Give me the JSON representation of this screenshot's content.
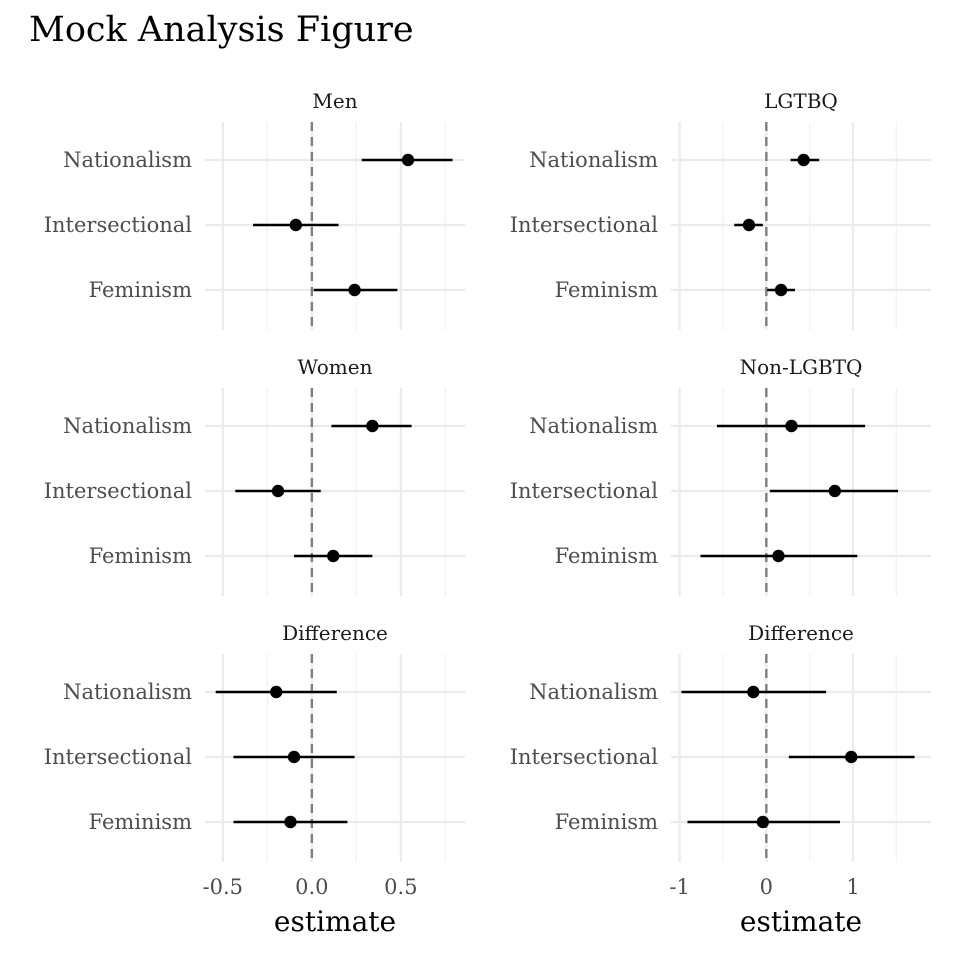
{
  "title": "Mock Analysis Figure",
  "chart_data": [
    {
      "type": "scatter",
      "panel": "Men",
      "column": "left",
      "categories": [
        "Nationalism",
        "Intersectional",
        "Feminism"
      ],
      "series": [
        {
          "estimate": [
            0.54,
            -0.09,
            0.24
          ],
          "lower": [
            0.28,
            -0.33,
            0.01
          ],
          "upper": [
            0.79,
            0.15,
            0.48
          ]
        }
      ],
      "xlim": [
        -0.6,
        0.86
      ],
      "reference_line": 0
    },
    {
      "type": "scatter",
      "panel": "LGTBQ",
      "column": "right",
      "categories": [
        "Nationalism",
        "Intersectional",
        "Feminism"
      ],
      "series": [
        {
          "estimate": [
            0.43,
            -0.2,
            0.17
          ],
          "lower": [
            0.28,
            -0.37,
            0.01
          ],
          "upper": [
            0.61,
            -0.04,
            0.33
          ]
        }
      ],
      "xlim": [
        -1.1,
        1.9
      ],
      "reference_line": 0
    },
    {
      "type": "scatter",
      "panel": "Women",
      "column": "left",
      "categories": [
        "Nationalism",
        "Intersectional",
        "Feminism"
      ],
      "series": [
        {
          "estimate": [
            0.34,
            -0.19,
            0.12
          ],
          "lower": [
            0.11,
            -0.43,
            -0.1
          ],
          "upper": [
            0.56,
            0.05,
            0.34
          ]
        }
      ],
      "xlim": [
        -0.6,
        0.86
      ],
      "reference_line": 0
    },
    {
      "type": "scatter",
      "panel": "Non-LGBTQ",
      "column": "right",
      "categories": [
        "Nationalism",
        "Intersectional",
        "Feminism"
      ],
      "series": [
        {
          "estimate": [
            0.29,
            0.79,
            0.14
          ],
          "lower": [
            -0.57,
            0.04,
            -0.76
          ],
          "upper": [
            1.14,
            1.52,
            1.05
          ]
        }
      ],
      "xlim": [
        -1.1,
        1.9
      ],
      "reference_line": 0
    },
    {
      "type": "scatter",
      "panel": "Difference",
      "column": "left",
      "categories": [
        "Nationalism",
        "Intersectional",
        "Feminism"
      ],
      "series": [
        {
          "estimate": [
            -0.2,
            -0.1,
            -0.12
          ],
          "lower": [
            -0.54,
            -0.44,
            -0.44
          ],
          "upper": [
            0.14,
            0.24,
            0.2
          ]
        }
      ],
      "xlim": [
        -0.6,
        0.86
      ],
      "reference_line": 0
    },
    {
      "type": "scatter",
      "panel": "Difference",
      "column": "right",
      "categories": [
        "Nationalism",
        "Intersectional",
        "Feminism"
      ],
      "series": [
        {
          "estimate": [
            -0.15,
            0.98,
            -0.04
          ],
          "lower": [
            -0.98,
            0.26,
            -0.91
          ],
          "upper": [
            0.69,
            1.71,
            0.85
          ]
        }
      ],
      "xlim": [
        -1.1,
        1.9
      ],
      "reference_line": 0
    }
  ],
  "axes": {
    "left": {
      "ticks": [
        -0.5,
        0.0,
        0.5
      ],
      "tick_labels": [
        "-0.5",
        "0.0",
        "0.5"
      ],
      "minor": [
        -0.25,
        0.25,
        0.75
      ],
      "xlabel": "estimate"
    },
    "right": {
      "ticks": [
        -1,
        0,
        1
      ],
      "tick_labels": [
        "-1",
        "0",
        "1"
      ],
      "minor": [
        -0.5,
        0.5,
        1.5
      ],
      "xlabel": "estimate"
    }
  }
}
